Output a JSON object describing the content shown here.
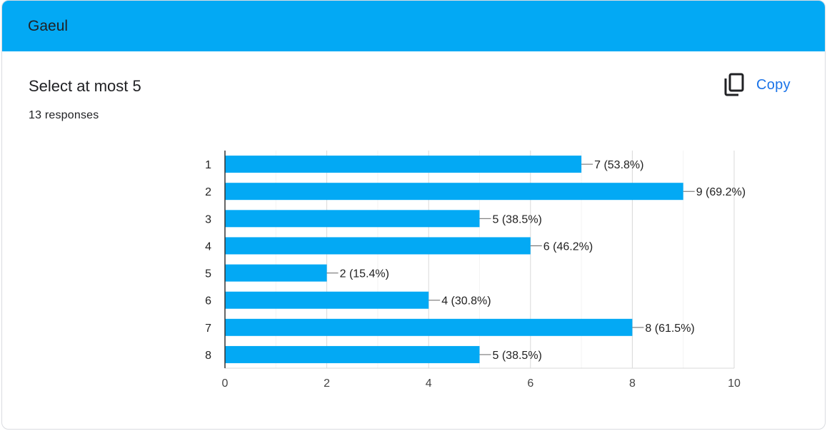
{
  "header": {
    "title": "Gaeul"
  },
  "question": {
    "title": "Select at most 5",
    "responses": "13 responses"
  },
  "toolbar": {
    "copy_label": "Copy",
    "copy_icon": "copy-icon"
  },
  "colors": {
    "header": "#03a9f4",
    "bar": "#03a9f4",
    "accent": "#1a73e8"
  },
  "chart_data": {
    "type": "bar",
    "orientation": "horizontal",
    "categories": [
      "1",
      "2",
      "3",
      "4",
      "5",
      "6",
      "7",
      "8"
    ],
    "values": [
      7,
      9,
      5,
      6,
      2,
      4,
      8,
      5
    ],
    "labels": [
      "7 (53.8%)",
      "9 (69.2%)",
      "5 (38.5%)",
      "6 (46.2%)",
      "2 (15.4%)",
      "4 (30.8%)",
      "8 (61.5%)",
      "5 (38.5%)"
    ],
    "xlim": [
      0,
      10
    ],
    "xticks": [
      0,
      2,
      4,
      6,
      8,
      10
    ],
    "grid": true,
    "title": "",
    "xlabel": "",
    "ylabel": ""
  }
}
